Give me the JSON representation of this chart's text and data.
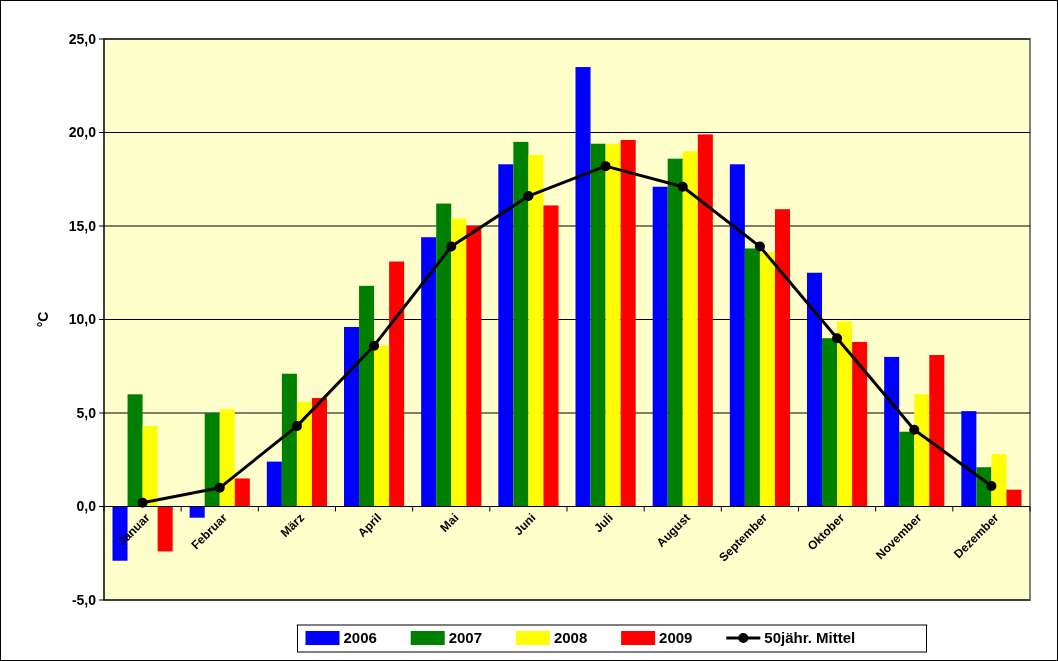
{
  "chart_data": {
    "type": "bar",
    "ylabel": "°C",
    "categories": [
      "Januar",
      "Februar",
      "März",
      "April",
      "Mai",
      "Juni",
      "Juli",
      "August",
      "September",
      "Oktober",
      "November",
      "Dezember"
    ],
    "series": [
      {
        "name": "2006",
        "color": "#0000ff",
        "values": [
          -2.9,
          -0.6,
          2.4,
          9.6,
          14.4,
          18.3,
          23.5,
          17.1,
          18.3,
          12.5,
          8.0,
          5.1
        ]
      },
      {
        "name": "2007",
        "color": "#008000",
        "values": [
          6.0,
          5.0,
          7.1,
          11.8,
          16.2,
          19.5,
          19.4,
          18.6,
          13.8,
          9.0,
          4.0,
          2.1
        ]
      },
      {
        "name": "2008",
        "color": "#ffff00",
        "values": [
          4.3,
          5.2,
          5.6,
          8.6,
          15.4,
          18.8,
          19.4,
          19.0,
          13.6,
          9.9,
          6.0,
          2.8
        ]
      },
      {
        "name": "2009",
        "color": "#ff0000",
        "values": [
          -2.4,
          1.5,
          5.8,
          13.1,
          15.0,
          16.1,
          19.6,
          19.9,
          15.9,
          8.8,
          8.1,
          0.9
        ]
      },
      {
        "name": "50jähr. Mittel",
        "type": "line",
        "color": "#000000",
        "marker": "circle",
        "values": [
          0.2,
          1.0,
          4.3,
          8.6,
          13.9,
          16.6,
          18.2,
          17.1,
          13.9,
          9.0,
          4.1,
          1.1
        ]
      }
    ],
    "ylim": [
      -5,
      25
    ],
    "yticks": [
      {
        "value": -5,
        "label": "-5,0"
      },
      {
        "value": 0,
        "label": "0,0"
      },
      {
        "value": 5,
        "label": "5,0"
      },
      {
        "value": 10,
        "label": "10,0"
      },
      {
        "value": 15,
        "label": "15,0"
      },
      {
        "value": 20,
        "label": "20,0"
      },
      {
        "value": 25,
        "label": "25,0"
      }
    ],
    "grid": "y",
    "legend": "bottom"
  }
}
